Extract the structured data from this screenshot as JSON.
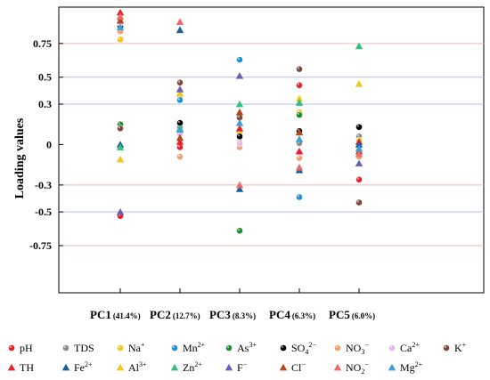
{
  "chart_data": {
    "type": "scatter",
    "ylabel": "Loading values",
    "ylim": [
      -1.1,
      1.02
    ],
    "yticks": [
      {
        "value": 0.75,
        "label": "0.75"
      },
      {
        "value": 0.5,
        "label": "0.5"
      },
      {
        "value": 0.3,
        "label": "0.3"
      },
      {
        "value": 0,
        "label": "0"
      },
      {
        "value": -0.3,
        "label": "-0.3"
      },
      {
        "value": -0.5,
        "label": "-0.5"
      },
      {
        "value": -0.75,
        "label": "-0.75"
      }
    ],
    "reference_lines": [
      {
        "value": 0.75,
        "color": "#f2b8b8"
      },
      {
        "value": 0.5,
        "color": "#b9bde8"
      },
      {
        "value": 0.3,
        "color": "#b9bde8"
      },
      {
        "value": -0.3,
        "color": "#f2b8b8"
      },
      {
        "value": -0.5,
        "color": "#b9bde8"
      },
      {
        "value": -0.75,
        "color": "#f2b8b8"
      }
    ],
    "categories": [
      {
        "label": "PC1",
        "sub": "(41.4%)"
      },
      {
        "label": "PC2",
        "sub": "(12.7%)"
      },
      {
        "label": "PC3",
        "sub": "(8.3%)"
      },
      {
        "label": "PC4",
        "sub": "(6.3%)"
      },
      {
        "label": "PC5",
        "sub": "(6.0%)"
      }
    ],
    "series": [
      {
        "name": "pH",
        "sup": "",
        "marker": "circle",
        "color": "#e8202a",
        "values": [
          -0.53,
          -0.02,
          -0.02,
          0.44,
          -0.26
        ]
      },
      {
        "name": "TDS",
        "sup": "",
        "marker": "circle",
        "color": "#8c8c8c",
        "values": [
          0.93,
          0.13,
          0.02,
          0.01,
          0.06
        ]
      },
      {
        "name": "Na",
        "sup": "+",
        "marker": "circle",
        "color": "#f5c518",
        "values": [
          0.78,
          0.35,
          0.09,
          0.24,
          0.03
        ]
      },
      {
        "name": "Mn",
        "sup": "2+",
        "marker": "circle",
        "color": "#1c8fd6",
        "values": [
          0.85,
          0.33,
          0.63,
          -0.39,
          -0.02
        ]
      },
      {
        "name": "As",
        "sup": "3+",
        "marker": "circle",
        "color": "#1f8a2e",
        "values": [
          0.15,
          0.09,
          -0.64,
          0.22,
          -0.03
        ]
      },
      {
        "name": "SO",
        "sub": "4",
        "sup": "2−",
        "marker": "circle",
        "color": "#000000",
        "values": [
          0.88,
          0.16,
          0.06,
          0.1,
          0.13
        ]
      },
      {
        "name": "NO",
        "sub": "3",
        "sup": "−",
        "marker": "circle",
        "color": "#f0a070",
        "values": [
          0.84,
          -0.09,
          -0.02,
          -0.1,
          -0.09
        ]
      },
      {
        "name": "Ca",
        "sup": "2+",
        "marker": "circle",
        "color": "#e6b8e0",
        "values": [
          0.9,
          0.08,
          0.01,
          -0.06,
          -0.04
        ]
      },
      {
        "name": "K",
        "sup": "+",
        "marker": "circle",
        "color": "#7a4a3a",
        "values": [
          0.12,
          0.46,
          0.2,
          0.56,
          -0.43
        ]
      },
      {
        "name": "TH",
        "sup": "",
        "marker": "triangle",
        "color": "#e8202a",
        "values": [
          0.98,
          0.02,
          0.12,
          -0.05,
          0.02
        ]
      },
      {
        "name": "Fe",
        "sup": "2+",
        "marker": "triangle",
        "color": "#1b5f9a",
        "values": [
          0.0,
          0.85,
          -0.33,
          -0.19,
          0.0
        ]
      },
      {
        "name": "Al",
        "sup": "3+",
        "marker": "triangle",
        "color": "#f5c518",
        "values": [
          -0.11,
          0.38,
          0.16,
          0.34,
          0.45
        ]
      },
      {
        "name": "Zn",
        "sup": "2+",
        "marker": "triangle",
        "color": "#2ec27e",
        "values": [
          -0.02,
          0.12,
          0.3,
          0.31,
          0.73
        ]
      },
      {
        "name": "F",
        "sup": "−",
        "marker": "triangle",
        "color": "#6b5fb5",
        "values": [
          -0.5,
          0.41,
          0.51,
          0.09,
          -0.14
        ]
      },
      {
        "name": "Cl",
        "sup": "−",
        "marker": "triangle",
        "color": "#b5481a",
        "values": [
          0.92,
          0.05,
          0.24,
          0.09,
          -0.05
        ]
      },
      {
        "name": "NO",
        "sub": "2",
        "sup": "−",
        "marker": "triangle",
        "color": "#ee6a6a",
        "values": [
          0.95,
          0.91,
          -0.3,
          -0.17,
          -0.07
        ]
      },
      {
        "name": "Mg",
        "sup": "2+",
        "marker": "triangle",
        "color": "#3aa0d8",
        "values": [
          0.87,
          0.11,
          0.16,
          0.04,
          -0.03
        ]
      }
    ],
    "legend_position": "bottom"
  }
}
